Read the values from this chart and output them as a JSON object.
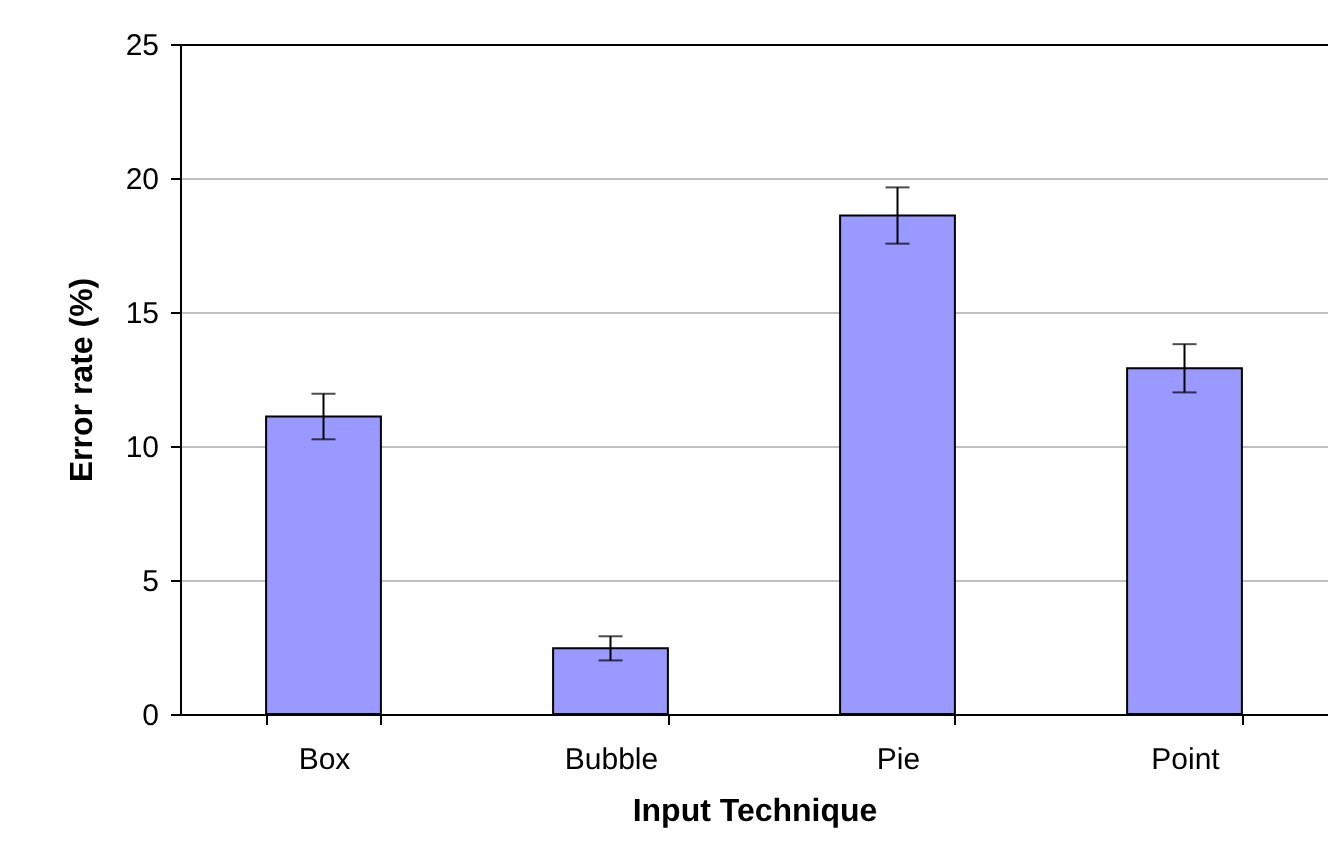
{
  "chart_data": {
    "type": "bar",
    "xlabel": "Input Technique",
    "ylabel": "Error rate (%)",
    "categories": [
      "Box",
      "Bubble",
      "Pie",
      "Point"
    ],
    "values": [
      11.1,
      2.45,
      18.6,
      12.9
    ],
    "errors": [
      0.85,
      0.45,
      1.05,
      0.9
    ],
    "color": "#9999ff",
    "ylim": [
      0,
      25
    ],
    "yticks": [
      0,
      5,
      10,
      15,
      20,
      25
    ],
    "grid": "y"
  }
}
